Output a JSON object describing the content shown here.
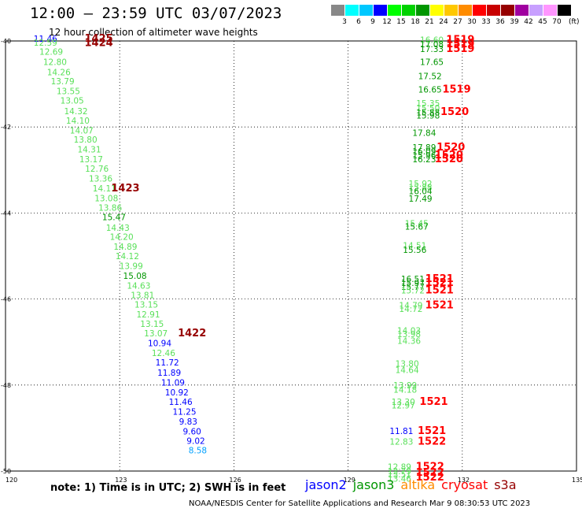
{
  "header": {
    "title": "12:00 — 23:59 UTC 03/07/2023",
    "subtitle": "12 hour collection of altimeter wave heights"
  },
  "legend": {
    "unit": "(ft)",
    "swatches": [
      {
        "color": "#888888",
        "label": "3"
      },
      {
        "color": "#00ffff",
        "label": "6"
      },
      {
        "color": "#00c8ff",
        "label": "9"
      },
      {
        "color": "#0000ff",
        "label": "12"
      },
      {
        "color": "#00ff00",
        "label": "15"
      },
      {
        "color": "#00d200",
        "label": "18"
      },
      {
        "color": "#009600",
        "label": "21"
      },
      {
        "color": "#ffff00",
        "label": "24"
      },
      {
        "color": "#ffc800",
        "label": "27"
      },
      {
        "color": "#ff8c00",
        "label": "30"
      },
      {
        "color": "#ff0000",
        "label": "33"
      },
      {
        "color": "#c80000",
        "label": "36"
      },
      {
        "color": "#960000",
        "label": "39"
      },
      {
        "color": "#a000a0",
        "label": "42"
      },
      {
        "color": "#c8a0ff",
        "label": "45"
      },
      {
        "color": "#ff96ff",
        "label": "70"
      },
      {
        "color": "#000000",
        "label": ""
      }
    ]
  },
  "axes": {
    "lon_ticks": [
      "120",
      "123",
      "126",
      "129",
      "132",
      "135"
    ],
    "lat_ticks": [
      "-40",
      "-42",
      "-44",
      "-46",
      "-48",
      "-50"
    ]
  },
  "chart_data": {
    "type": "scatter",
    "xlim": [
      120,
      135
    ],
    "ylim": [
      -50,
      -40
    ],
    "grid": true,
    "wave_heights": [
      {
        "lon": 121.05,
        "lat": -40.02,
        "v": "11.46",
        "c": "#0000ff"
      },
      {
        "lon": 121.05,
        "lat": -40.11,
        "v": "12.59",
        "c": "#5ae05a"
      },
      {
        "lon": 121.2,
        "lat": -40.32,
        "v": "12.69",
        "c": "#5ae05a"
      },
      {
        "lon": 121.3,
        "lat": -40.56,
        "v": "12.80",
        "c": "#5ae05a"
      },
      {
        "lon": 121.4,
        "lat": -40.8,
        "v": "14.26",
        "c": "#5ae05a"
      },
      {
        "lon": 121.5,
        "lat": -41.01,
        "v": "13.79",
        "c": "#5ae05a"
      },
      {
        "lon": 121.65,
        "lat": -41.24,
        "v": "13.55",
        "c": "#5ae05a"
      },
      {
        "lon": 121.75,
        "lat": -41.46,
        "v": "13.05",
        "c": "#5ae05a"
      },
      {
        "lon": 121.85,
        "lat": -41.7,
        "v": "14.32",
        "c": "#5ae05a"
      },
      {
        "lon": 121.9,
        "lat": -41.92,
        "v": "14.10",
        "c": "#5ae05a"
      },
      {
        "lon": 122.0,
        "lat": -42.15,
        "v": "14.07",
        "c": "#5ae05a"
      },
      {
        "lon": 122.1,
        "lat": -42.36,
        "v": "13.80",
        "c": "#5ae05a"
      },
      {
        "lon": 122.2,
        "lat": -42.59,
        "v": "14.31",
        "c": "#5ae05a"
      },
      {
        "lon": 122.25,
        "lat": -42.82,
        "v": "13.17",
        "c": "#5ae05a"
      },
      {
        "lon": 122.4,
        "lat": -43.04,
        "v": "12.76",
        "c": "#5ae05a"
      },
      {
        "lon": 122.5,
        "lat": -43.27,
        "v": "13.36",
        "c": "#5ae05a"
      },
      {
        "lon": 122.6,
        "lat": -43.5,
        "v": "14.11",
        "c": "#5ae05a"
      },
      {
        "lon": 122.65,
        "lat": -43.73,
        "v": "13.08",
        "c": "#5ae05a"
      },
      {
        "lon": 122.75,
        "lat": -43.95,
        "v": "13.86",
        "c": "#5ae05a"
      },
      {
        "lon": 122.85,
        "lat": -44.17,
        "v": "15.47",
        "c": "#009600"
      },
      {
        "lon": 122.95,
        "lat": -44.41,
        "v": "14.43",
        "c": "#5ae05a"
      },
      {
        "lon": 123.05,
        "lat": -44.62,
        "v": "14.20",
        "c": "#5ae05a"
      },
      {
        "lon": 123.15,
        "lat": -44.85,
        "v": "14.89",
        "c": "#5ae05a"
      },
      {
        "lon": 123.2,
        "lat": -45.07,
        "v": "14.12",
        "c": "#5ae05a"
      },
      {
        "lon": 123.3,
        "lat": -45.3,
        "v": "13.99",
        "c": "#5ae05a"
      },
      {
        "lon": 123.4,
        "lat": -45.53,
        "v": "15.08",
        "c": "#009600"
      },
      {
        "lon": 123.5,
        "lat": -45.76,
        "v": "14.63",
        "c": "#5ae05a"
      },
      {
        "lon": 123.6,
        "lat": -45.98,
        "v": "13.81",
        "c": "#5ae05a"
      },
      {
        "lon": 123.7,
        "lat": -46.2,
        "v": "13.15",
        "c": "#5ae05a"
      },
      {
        "lon": 123.75,
        "lat": -46.43,
        "v": "12.91",
        "c": "#5ae05a"
      },
      {
        "lon": 123.85,
        "lat": -46.65,
        "v": "13.15",
        "c": "#5ae05a"
      },
      {
        "lon": 123.95,
        "lat": -46.87,
        "v": "13.07",
        "c": "#5ae05a"
      },
      {
        "lon": 124.05,
        "lat": -47.1,
        "v": "10.94",
        "c": "#0000ff"
      },
      {
        "lon": 124.15,
        "lat": -47.33,
        "v": "12.46",
        "c": "#5ae05a"
      },
      {
        "lon": 124.25,
        "lat": -47.55,
        "v": "11.72",
        "c": "#0000ff"
      },
      {
        "lon": 124.3,
        "lat": -47.78,
        "v": "11.89",
        "c": "#0000ff"
      },
      {
        "lon": 124.4,
        "lat": -48.01,
        "v": "11.09",
        "c": "#0000ff"
      },
      {
        "lon": 124.5,
        "lat": -48.24,
        "v": "10.92",
        "c": "#0000ff"
      },
      {
        "lon": 124.6,
        "lat": -48.46,
        "v": "11.46",
        "c": "#0000ff"
      },
      {
        "lon": 124.7,
        "lat": -48.69,
        "v": "11.25",
        "c": "#0000ff"
      },
      {
        "lon": 124.8,
        "lat": -48.92,
        "v": "9.83",
        "c": "#0000ff"
      },
      {
        "lon": 124.9,
        "lat": -49.15,
        "v": "9.60",
        "c": "#0000ff"
      },
      {
        "lon": 125.0,
        "lat": -49.37,
        "v": "9.02",
        "c": "#0000ff"
      },
      {
        "lon": 125.05,
        "lat": -49.59,
        "v": "8.58",
        "c": "#00a0ff"
      },
      {
        "lon": 131.2,
        "lat": -40.05,
        "v": "16.60",
        "c": "#5ae05a"
      },
      {
        "lon": 131.2,
        "lat": -40.15,
        "v": "17.08",
        "c": "#009600"
      },
      {
        "lon": 131.2,
        "lat": -40.26,
        "v": "17.33",
        "c": "#009600"
      },
      {
        "lon": 131.2,
        "lat": -40.56,
        "v": "17.65",
        "c": "#009600"
      },
      {
        "lon": 131.15,
        "lat": -40.89,
        "v": "17.52",
        "c": "#009600"
      },
      {
        "lon": 131.15,
        "lat": -41.2,
        "v": "16.65",
        "c": "#009600"
      },
      {
        "lon": 131.1,
        "lat": -41.52,
        "v": "15.35",
        "c": "#5ae05a"
      },
      {
        "lon": 131.1,
        "lat": -41.63,
        "v": "15.50",
        "c": "#5ae05a"
      },
      {
        "lon": 131.1,
        "lat": -41.73,
        "v": "15.88",
        "c": "#009600"
      },
      {
        "lon": 131.1,
        "lat": -41.8,
        "v": "15.98",
        "c": "#009600"
      },
      {
        "lon": 131.0,
        "lat": -42.21,
        "v": "17.84",
        "c": "#009600"
      },
      {
        "lon": 131.0,
        "lat": -42.55,
        "v": "17.89",
        "c": "#009600"
      },
      {
        "lon": 131.0,
        "lat": -42.64,
        "v": "16.09",
        "c": "#009600"
      },
      {
        "lon": 131.0,
        "lat": -42.73,
        "v": "15.96",
        "c": "#009600"
      },
      {
        "lon": 131.0,
        "lat": -42.82,
        "v": "16.23",
        "c": "#009600"
      },
      {
        "lon": 130.9,
        "lat": -43.39,
        "v": "15.92",
        "c": "#5ae05a"
      },
      {
        "lon": 130.9,
        "lat": -43.47,
        "v": "15.88",
        "c": "#5ae05a"
      },
      {
        "lon": 130.9,
        "lat": -43.56,
        "v": "16.04",
        "c": "#009600"
      },
      {
        "lon": 130.9,
        "lat": -43.74,
        "v": "17.49",
        "c": "#009600"
      },
      {
        "lon": 130.8,
        "lat": -44.31,
        "v": "15.45",
        "c": "#5ae05a"
      },
      {
        "lon": 130.8,
        "lat": -44.39,
        "v": "15.67",
        "c": "#009600"
      },
      {
        "lon": 130.75,
        "lat": -44.83,
        "v": "14.51",
        "c": "#5ae05a"
      },
      {
        "lon": 130.75,
        "lat": -44.93,
        "v": "15.56",
        "c": "#009600"
      },
      {
        "lon": 130.7,
        "lat": -45.6,
        "v": "16.51",
        "c": "#009600"
      },
      {
        "lon": 130.7,
        "lat": -45.7,
        "v": "15.97",
        "c": "#009600"
      },
      {
        "lon": 130.7,
        "lat": -45.79,
        "v": "15.77",
        "c": "#009600"
      },
      {
        "lon": 130.7,
        "lat": -45.87,
        "v": "15.72",
        "c": "#5ae05a"
      },
      {
        "lon": 130.65,
        "lat": -46.22,
        "v": "14.79",
        "c": "#5ae05a"
      },
      {
        "lon": 130.65,
        "lat": -46.3,
        "v": "14.72",
        "c": "#5ae05a"
      },
      {
        "lon": 130.6,
        "lat": -46.8,
        "v": "14.03",
        "c": "#5ae05a"
      },
      {
        "lon": 130.6,
        "lat": -46.89,
        "v": "13.98",
        "c": "#5ae05a"
      },
      {
        "lon": 130.6,
        "lat": -47.04,
        "v": "14.36",
        "c": "#5ae05a"
      },
      {
        "lon": 130.55,
        "lat": -47.57,
        "v": "13.80",
        "c": "#5ae05a"
      },
      {
        "lon": 130.55,
        "lat": -47.72,
        "v": "14.64",
        "c": "#5ae05a"
      },
      {
        "lon": 130.5,
        "lat": -48.08,
        "v": "13.99",
        "c": "#5ae05a"
      },
      {
        "lon": 130.5,
        "lat": -48.18,
        "v": "14.18",
        "c": "#5ae05a"
      },
      {
        "lon": 130.45,
        "lat": -48.46,
        "v": "13.30",
        "c": "#5ae05a"
      },
      {
        "lon": 130.45,
        "lat": -48.54,
        "v": "12.97",
        "c": "#5ae05a"
      },
      {
        "lon": 130.4,
        "lat": -49.14,
        "v": "11.81",
        "c": "#0000ff"
      },
      {
        "lon": 130.4,
        "lat": -49.39,
        "v": "12.83",
        "c": "#5ae05a"
      },
      {
        "lon": 130.35,
        "lat": -49.97,
        "v": "12.89",
        "c": "#5ae05a"
      },
      {
        "lon": 130.35,
        "lat": -50.07,
        "v": "12.79",
        "c": "#5ae05a"
      },
      {
        "lon": 130.35,
        "lat": -50.15,
        "v": "13.51",
        "c": "#5ae05a"
      },
      {
        "lon": 130.35,
        "lat": -50.25,
        "v": "13.46",
        "c": "#5ae05a"
      }
    ],
    "pass_times": [
      {
        "lon": 122.45,
        "lat": -40.02,
        "v": "1425",
        "c": "#960000"
      },
      {
        "lon": 122.45,
        "lat": -40.12,
        "v": "1424",
        "c": "#960000"
      },
      {
        "lon": 123.15,
        "lat": -43.5,
        "v": "1423",
        "c": "#960000"
      },
      {
        "lon": 124.9,
        "lat": -46.87,
        "v": "1422",
        "c": "#960000"
      },
      {
        "lon": 131.95,
        "lat": -40.05,
        "v": "1519",
        "c": "#ff0000"
      },
      {
        "lon": 131.95,
        "lat": -40.15,
        "v": "1519",
        "c": "#ff0000"
      },
      {
        "lon": 131.95,
        "lat": -40.26,
        "v": "1519",
        "c": "#ff0000"
      },
      {
        "lon": 131.85,
        "lat": -41.2,
        "v": "1519",
        "c": "#ff0000"
      },
      {
        "lon": 131.8,
        "lat": -41.72,
        "v": "1520",
        "c": "#ff0000"
      },
      {
        "lon": 131.7,
        "lat": -42.55,
        "v": "1520",
        "c": "#ff0000"
      },
      {
        "lon": 131.65,
        "lat": -42.73,
        "v": "1520",
        "c": "#ff0000"
      },
      {
        "lon": 131.65,
        "lat": -42.82,
        "v": "1520",
        "c": "#ff0000"
      },
      {
        "lon": 131.4,
        "lat": -45.6,
        "v": "1521",
        "c": "#ff0000"
      },
      {
        "lon": 131.4,
        "lat": -45.7,
        "v": "1521",
        "c": "#ff0000"
      },
      {
        "lon": 131.4,
        "lat": -45.87,
        "v": "1521",
        "c": "#ff0000"
      },
      {
        "lon": 131.4,
        "lat": -46.22,
        "v": "1521",
        "c": "#ff0000"
      },
      {
        "lon": 131.25,
        "lat": -48.46,
        "v": "1521",
        "c": "#ff0000"
      },
      {
        "lon": 131.2,
        "lat": -49.14,
        "v": "1521",
        "c": "#ff0000"
      },
      {
        "lon": 131.2,
        "lat": -49.39,
        "v": "1522",
        "c": "#ff0000"
      },
      {
        "lon": 131.15,
        "lat": -49.97,
        "v": "1522",
        "c": "#ff0000"
      },
      {
        "lon": 131.15,
        "lat": -50.11,
        "v": "1522",
        "c": "#ff0000"
      },
      {
        "lon": 131.15,
        "lat": -50.22,
        "v": "1522",
        "c": "#ff0000"
      }
    ]
  },
  "footer": {
    "note": "note: 1) Time is in UTC; 2) SWH is in feet",
    "missions": [
      {
        "name": "jason2",
        "color": "#0000ff"
      },
      {
        "name": "jason3",
        "color": "#009600"
      },
      {
        "name": "altika",
        "color": "#ff8c00"
      },
      {
        "name": "cryosat",
        "color": "#ff0000"
      },
      {
        "name": "s3a",
        "color": "#960000"
      }
    ],
    "credit": "NOAA/NESDIS Center for Satellite Applications and Research    Mar  9 08:30:53 UTC 2023"
  }
}
